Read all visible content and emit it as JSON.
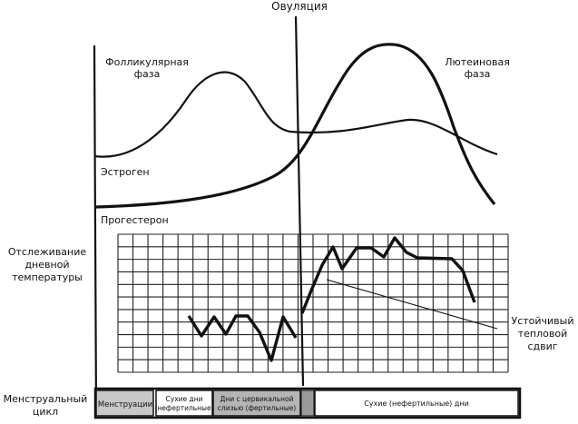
{
  "labels": {
    "ovulation": "Овуляция",
    "follicular_line1": "Фолликулярная",
    "follicular_line2": "фаза",
    "luteal_line1": "Лютеиновая",
    "luteal_line2": "фаза",
    "estrogen": "Эстроген",
    "progesterone": "Прогестерон",
    "tracking_line1": "Отслеживание",
    "tracking_line2": "дневной",
    "tracking_line3": "температуры",
    "shift_line1": "Устойчивый",
    "shift_line2": "тепловой",
    "shift_line3": "сдвиг",
    "cycle_line1": "Менструальный",
    "cycle_line2": "цикл"
  },
  "cycle_bar": {
    "menstruation": "Менструации",
    "dry_days_1_line1": "Сухие дни",
    "dry_days_1_line2": "(нефертильные)",
    "fertile_line1": "Дни с цервикальной",
    "fertile_line2": "слизью (фертильные)",
    "dry_days_2": "Сухие (нефертильные) дни"
  },
  "colors": {
    "ink": "#111111",
    "shaded_segment": "#b9b9b9",
    "dark_segment": "#999999"
  }
}
